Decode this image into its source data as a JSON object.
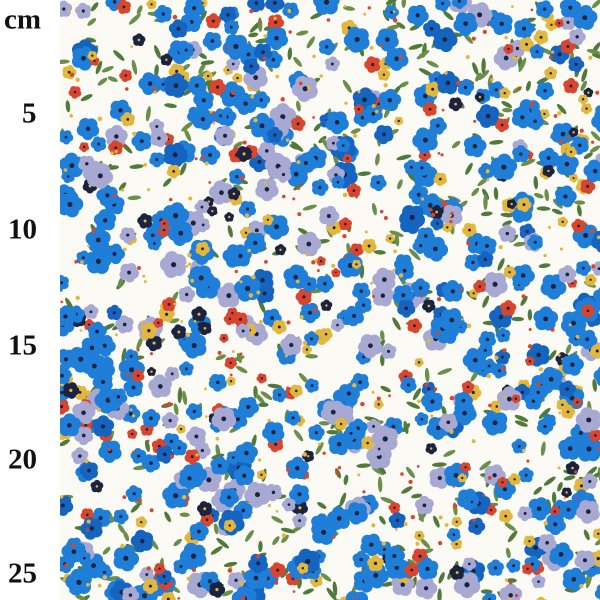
{
  "ruler": {
    "unit": "cm",
    "marks": [
      "5",
      "10",
      "15",
      "20",
      "25"
    ]
  }
}
